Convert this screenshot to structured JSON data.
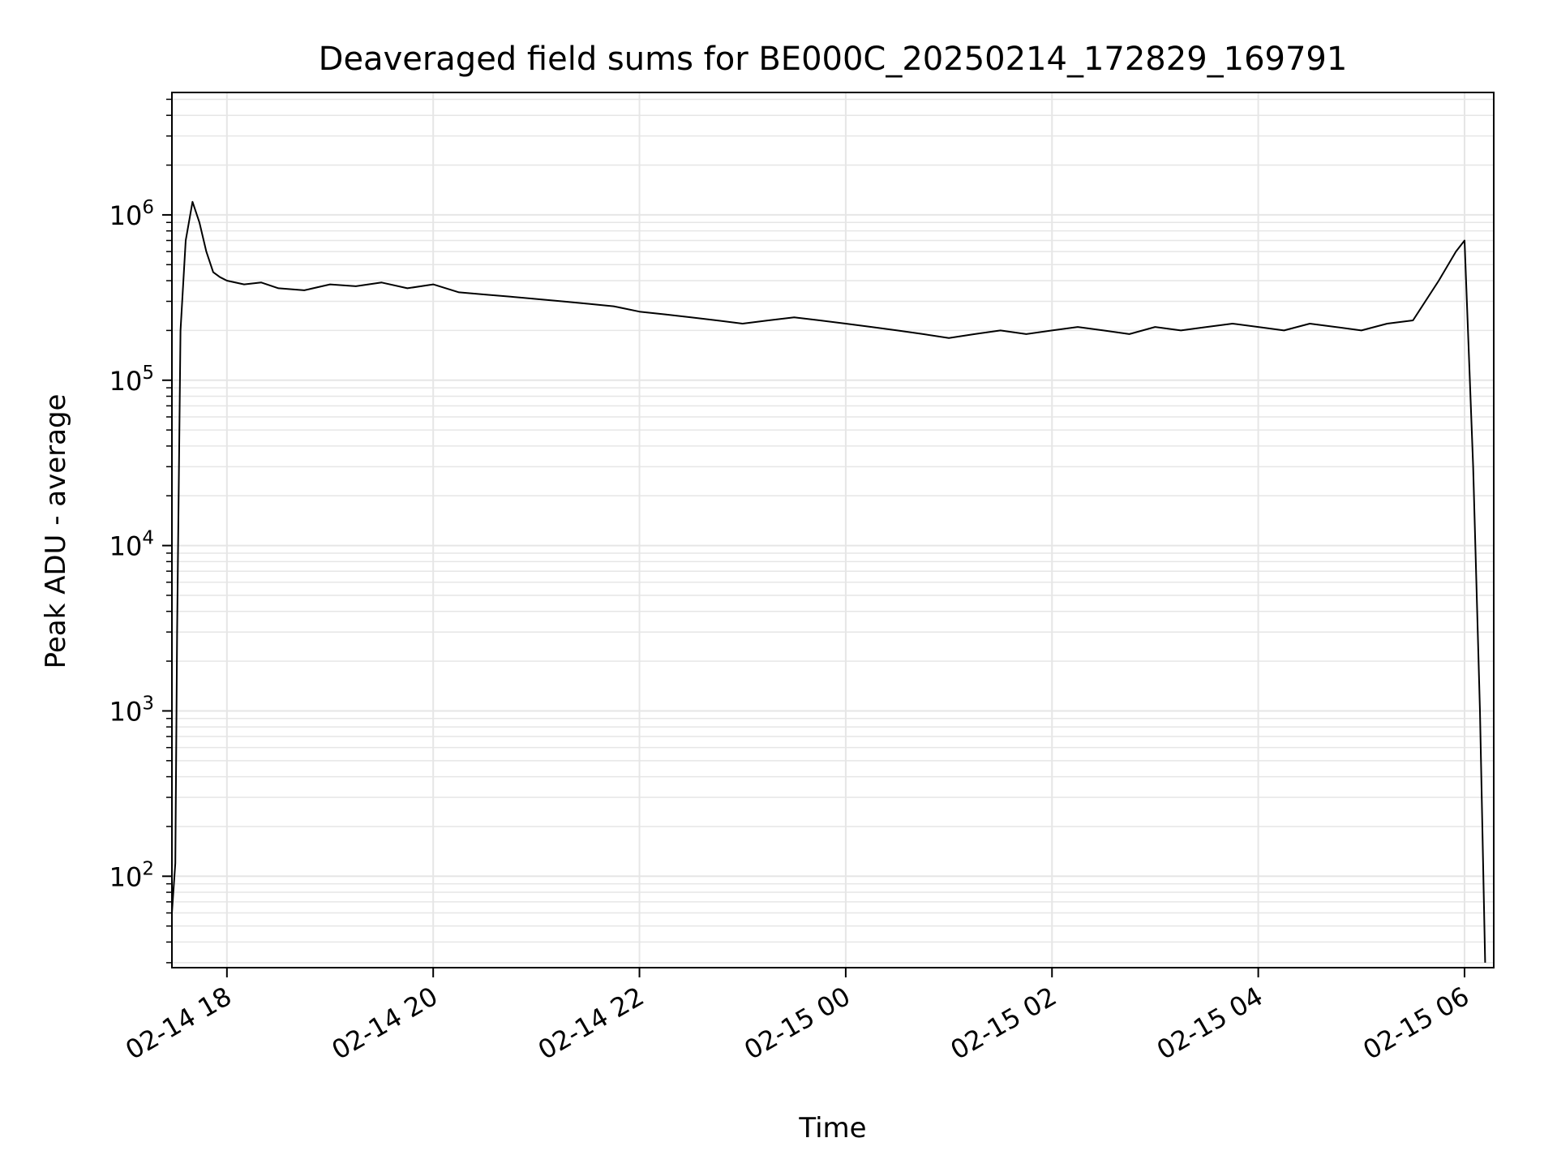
{
  "chart_data": {
    "type": "line",
    "title": "Deaveraged field sums for BE000C_20250214_172829_169791",
    "xlabel": "Time",
    "ylabel": "Peak ADU - average",
    "y_scale": "log",
    "ylim": [
      28,
      5500000
    ],
    "xlim": [
      "2025-02-14 17:28",
      "2025-02-15 06:17"
    ],
    "x_ticks": [
      "2025-02-14 18:00",
      "2025-02-14 20:00",
      "2025-02-14 22:00",
      "2025-02-15 00:00",
      "2025-02-15 02:00",
      "2025-02-15 04:00",
      "2025-02-15 06:00"
    ],
    "x_tick_labels": [
      "02-14 18",
      "02-14 20",
      "02-14 22",
      "02-15 00",
      "02-15 02",
      "02-15 04",
      "02-15 06"
    ],
    "y_ticks": [
      100,
      1000,
      10000,
      100000,
      1000000
    ],
    "y_tick_labels": [
      {
        "base": "10",
        "exp": "2"
      },
      {
        "base": "10",
        "exp": "3"
      },
      {
        "base": "10",
        "exp": "4"
      },
      {
        "base": "10",
        "exp": "5"
      },
      {
        "base": "10",
        "exp": "6"
      }
    ],
    "grid": true,
    "line_color": "#000000",
    "grid_color": "#e6e6e6",
    "series": [
      {
        "x": [
          "2025-02-14 17:28",
          "2025-02-14 17:30",
          "2025-02-14 17:31",
          "2025-02-14 17:33",
          "2025-02-14 17:36",
          "2025-02-14 17:40",
          "2025-02-14 17:44",
          "2025-02-14 17:48",
          "2025-02-14 17:52",
          "2025-02-14 17:56",
          "2025-02-14 18:00",
          "2025-02-14 18:10",
          "2025-02-14 18:20",
          "2025-02-14 18:30",
          "2025-02-14 18:45",
          "2025-02-14 19:00",
          "2025-02-14 19:15",
          "2025-02-14 19:30",
          "2025-02-14 19:45",
          "2025-02-14 20:00",
          "2025-02-14 20:15",
          "2025-02-14 20:30",
          "2025-02-14 20:45",
          "2025-02-14 21:00",
          "2025-02-14 21:15",
          "2025-02-14 21:30",
          "2025-02-14 21:45",
          "2025-02-14 22:00",
          "2025-02-14 22:15",
          "2025-02-14 22:30",
          "2025-02-14 22:45",
          "2025-02-14 23:00",
          "2025-02-14 23:15",
          "2025-02-14 23:30",
          "2025-02-14 23:45",
          "2025-02-15 00:00",
          "2025-02-15 00:15",
          "2025-02-15 00:30",
          "2025-02-15 00:45",
          "2025-02-15 01:00",
          "2025-02-15 01:15",
          "2025-02-15 01:30",
          "2025-02-15 01:45",
          "2025-02-15 02:00",
          "2025-02-15 02:15",
          "2025-02-15 02:30",
          "2025-02-15 02:45",
          "2025-02-15 03:00",
          "2025-02-15 03:15",
          "2025-02-15 03:30",
          "2025-02-15 03:45",
          "2025-02-15 04:00",
          "2025-02-15 04:15",
          "2025-02-15 04:30",
          "2025-02-15 04:45",
          "2025-02-15 05:00",
          "2025-02-15 05:15",
          "2025-02-15 05:30",
          "2025-02-15 05:45",
          "2025-02-15 05:55",
          "2025-02-15 06:00",
          "2025-02-15 06:05",
          "2025-02-15 06:09",
          "2025-02-15 06:12"
        ],
        "y": [
          60,
          120,
          3000,
          200000,
          700000,
          1200000,
          900000,
          600000,
          450000,
          420000,
          400000,
          380000,
          390000,
          360000,
          350000,
          380000,
          370000,
          390000,
          360000,
          380000,
          340000,
          330000,
          320000,
          310000,
          300000,
          290000,
          280000,
          260000,
          250000,
          240000,
          230000,
          220000,
          230000,
          240000,
          230000,
          220000,
          210000,
          200000,
          190000,
          180000,
          190000,
          200000,
          190000,
          200000,
          210000,
          200000,
          190000,
          210000,
          200000,
          210000,
          220000,
          210000,
          200000,
          220000,
          210000,
          200000,
          220000,
          230000,
          400000,
          600000,
          700000,
          30000,
          1000,
          30
        ]
      }
    ]
  }
}
